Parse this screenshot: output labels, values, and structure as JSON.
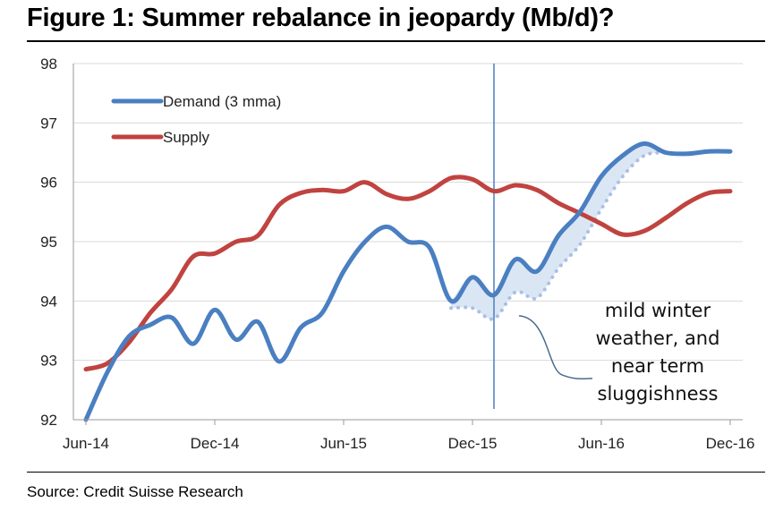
{
  "title": "Figure 1: Summer rebalance in jeopardy (Mb/d)?",
  "source": "Source: Credit Suisse Research",
  "colors": {
    "demand": "#4a7fc1",
    "supply": "#c0433f",
    "shade": "#dbe6f5",
    "grid": "#d9d9d9",
    "vline": "#4a7fc1"
  },
  "chart_data": {
    "type": "line",
    "title": "Figure 1: Summer rebalance in jeopardy (Mb/d)?",
    "xlabel": "",
    "ylabel": "",
    "x_ticks": [
      "Jun-14",
      "Dec-14",
      "Jun-15",
      "Dec-15",
      "Jun-16",
      "Dec-16"
    ],
    "y_ticks": [
      "92",
      "93",
      "94",
      "95",
      "96",
      "97",
      "98"
    ],
    "xlim": [
      "2014-06",
      "2016-12"
    ],
    "ylim": [
      92,
      98
    ],
    "grid": "horizontal",
    "legend": "top-left",
    "x_months": [
      "2014-06",
      "2014-07",
      "2014-08",
      "2014-09",
      "2014-10",
      "2014-11",
      "2014-12",
      "2015-01",
      "2015-02",
      "2015-03",
      "2015-04",
      "2015-05",
      "2015-06",
      "2015-07",
      "2015-08",
      "2015-09",
      "2015-10",
      "2015-11",
      "2015-12",
      "2016-01",
      "2016-02",
      "2016-03",
      "2016-04",
      "2016-05",
      "2016-06",
      "2016-07",
      "2016-08",
      "2016-09",
      "2016-10",
      "2016-11",
      "2016-12"
    ],
    "series": [
      {
        "name": "Demand (3 mma)",
        "values": [
          92.0,
          92.8,
          93.4,
          93.6,
          93.72,
          93.28,
          93.85,
          93.35,
          93.65,
          92.98,
          93.55,
          93.8,
          94.5,
          95.0,
          95.25,
          95.0,
          94.9,
          94.0,
          94.4,
          94.1,
          94.7,
          94.5,
          95.1,
          95.5,
          96.1,
          96.45,
          96.65,
          96.5,
          96.48,
          96.52,
          96.52
        ]
      },
      {
        "name": "Supply",
        "values": [
          92.85,
          92.95,
          93.3,
          93.8,
          94.2,
          94.75,
          94.8,
          95.0,
          95.1,
          95.62,
          95.82,
          95.87,
          95.85,
          96.0,
          95.8,
          95.72,
          95.85,
          96.07,
          96.05,
          95.85,
          95.95,
          95.87,
          95.65,
          95.48,
          95.3,
          95.12,
          95.18,
          95.4,
          95.65,
          95.82,
          95.85
        ]
      }
    ],
    "underlying_trend": {
      "style": "dotted",
      "x_months": [
        "2015-11",
        "2015-12",
        "2016-01",
        "2016-02",
        "2016-03",
        "2016-04",
        "2016-05",
        "2016-06",
        "2016-07",
        "2016-08",
        "2016-09"
      ],
      "values": [
        93.88,
        93.88,
        93.7,
        94.15,
        94.05,
        94.55,
        94.95,
        95.55,
        96.1,
        96.45,
        96.5
      ]
    },
    "vertical_marker": "2016-01",
    "annotation": {
      "lines": [
        "mild winter",
        "weather, and",
        "near term",
        "sluggishness"
      ],
      "points_to": {
        "x": "2016-02",
        "y": 93.75
      }
    }
  }
}
